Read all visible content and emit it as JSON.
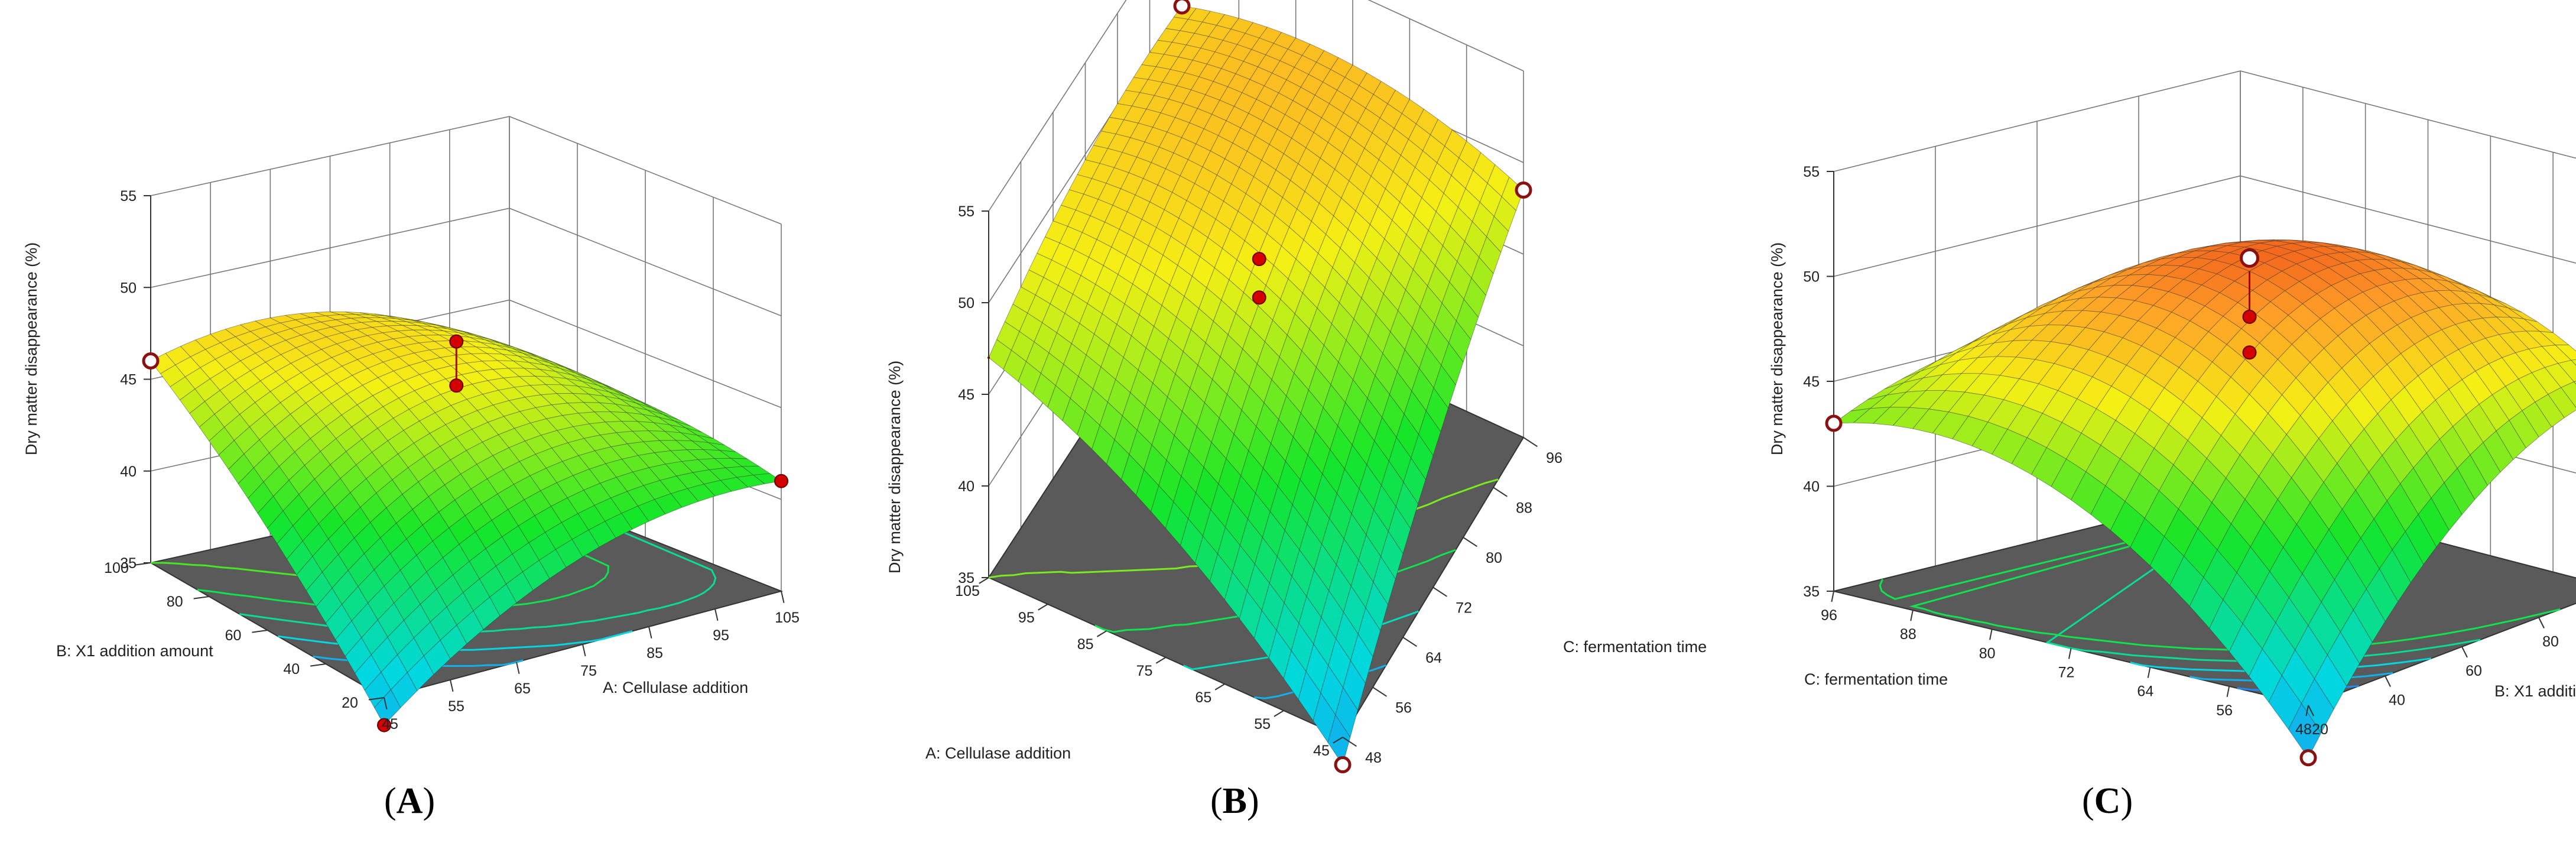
{
  "chart_data": [
    {
      "type": "surface3d",
      "panel_label": "A",
      "zlabel": "Dry matter disappearance (%)",
      "xlabel": "A: Cellulase addition",
      "ylabel": "B: X1 addition amount",
      "zlim": [
        35,
        55
      ],
      "zticks": [
        "35",
        "40",
        "45",
        "50",
        "55"
      ],
      "xticks": [
        "45",
        "55",
        "65",
        "75",
        "85",
        "95",
        "105"
      ],
      "yticks": [
        "20",
        "40",
        "60",
        "80",
        "100"
      ],
      "surface_corners": {
        "x45_y20": 33.5,
        "x105_y20": 41.0,
        "x45_y100": 46.0,
        "x105_y100": 42.0
      },
      "design_points": [
        {
          "A": 45,
          "B": 20,
          "value": 33.5
        },
        {
          "A": 105,
          "B": 20,
          "value": 41.0
        },
        {
          "A": 45,
          "B": 100,
          "value": 46.0
        },
        {
          "A": 75,
          "B": 60,
          "value": 48.2
        },
        {
          "A": 75,
          "B": 60,
          "value": 45.8
        }
      ],
      "grid": true
    },
    {
      "type": "surface3d",
      "panel_label": "B",
      "zlabel": "Dry matter disappearance (%)",
      "xlabel": "A: Cellulase addition",
      "ylabel": "C: fermentation time",
      "zlim": [
        35,
        55
      ],
      "zticks": [
        "35",
        "40",
        "45",
        "50",
        "55"
      ],
      "xticks": [
        "45",
        "55",
        "65",
        "75",
        "85",
        "95",
        "105"
      ],
      "yticks": [
        "48",
        "56",
        "64",
        "72",
        "80",
        "88",
        "96"
      ],
      "surface_corners": {
        "x105_y96": 47.0,
        "x45_y96": 33.5,
        "x105_y48": 50.0,
        "x45_y48": 48.5
      },
      "design_points": [
        {
          "A": 105,
          "C": 96,
          "value": 47.0
        },
        {
          "A": 45,
          "C": 96,
          "value": 33.5
        },
        {
          "A": 45,
          "C": 48,
          "value": 48.5
        },
        {
          "A": 75,
          "C": 72,
          "value": 48.6
        },
        {
          "A": 75,
          "C": 72,
          "value": 46.5
        }
      ],
      "grid": true
    },
    {
      "type": "surface3d",
      "panel_label": "C",
      "zlabel": "Dry matter disappearance (%)",
      "xlabel": "C: fermentation time",
      "ylabel": "B: X1 addition amount",
      "zlim": [
        35,
        55
      ],
      "zticks": [
        "35",
        "40",
        "45",
        "50",
        "55"
      ],
      "xticks": [
        "48",
        "56",
        "64",
        "72",
        "80",
        "88",
        "96"
      ],
      "yticks": [
        "20",
        "40",
        "60",
        "80",
        "100"
      ],
      "surface_corners": {
        "x48_y20": 32.5,
        "x96_y20": 43.0,
        "x48_y100": 44.5,
        "x96_y100": 41.5
      },
      "design_points": [
        {
          "C": 96,
          "B": 20,
          "value": 43.0
        },
        {
          "C": 48,
          "B": 100,
          "value": 44.5
        },
        {
          "C": 48,
          "B": 20,
          "value": 32.5
        },
        {
          "C": 72,
          "B": 60,
          "value": 51.0
        },
        {
          "C": 72,
          "B": 60,
          "value": 48.2
        },
        {
          "C": 72,
          "B": 60,
          "value": 46.5
        }
      ],
      "grid": true
    }
  ]
}
